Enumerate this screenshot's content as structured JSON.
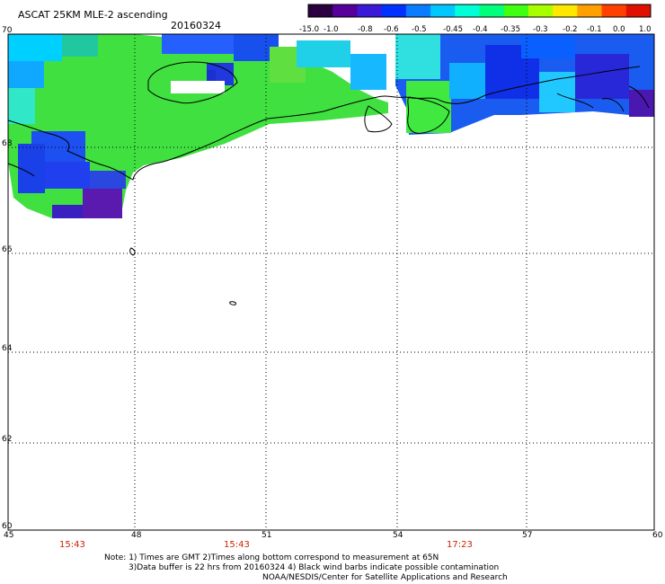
{
  "header": {
    "title": "ASCAT 25KM MLE-2 ascending",
    "date": "20160324"
  },
  "colorbar": {
    "labels": [
      "-15.0",
      "-1.0",
      "-0.8",
      "-0.6",
      "-0.5",
      "-0.45",
      "-0.4",
      "-0.35",
      "-0.3",
      "-0.2",
      "-0.1",
      "0.0",
      "1.0"
    ],
    "colors": [
      "#2a0040",
      "#55009a",
      "#3a1ad6",
      "#0032ff",
      "#0a7cff",
      "#00c8ff",
      "#00ffd8",
      "#00ff7a",
      "#40ff10",
      "#a8ff00",
      "#ffe800",
      "#ffa000",
      "#ff4000",
      "#e01000"
    ]
  },
  "map": {
    "lat_labels": [
      "70",
      "68",
      "66",
      "64",
      "62",
      "60"
    ],
    "lon_labels": [
      "45",
      "48",
      "51",
      "54",
      "57",
      "60"
    ],
    "lat_range": [
      60,
      70
    ],
    "lon_range": [
      45,
      60
    ],
    "grid": "dotted",
    "time_labels": [
      "15:43",
      "15:43",
      "17:23"
    ],
    "time_colors": [
      "#cc2200"
    ]
  },
  "notes": {
    "line1": "Note: 1) Times are GMT 2)Times along bottom correspond to measurement at 65N",
    "line2": "3)Data buffer is 22 hrs from 20160324 4) Black wind barbs indicate possible contamination",
    "credit": "NOAA/NESDIS/Center for Satellite Applications and Research"
  }
}
